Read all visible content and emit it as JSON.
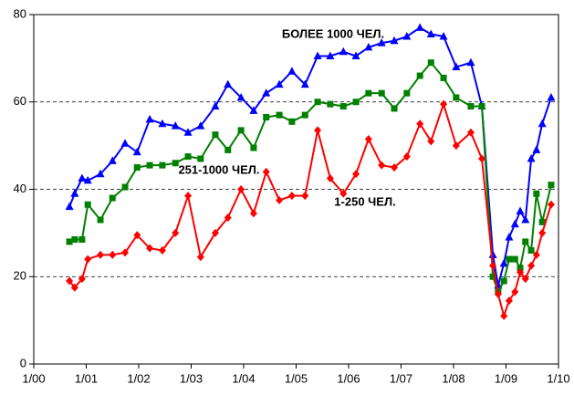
{
  "chart_data": {
    "type": "line",
    "x": [
      2000.68,
      2000.78,
      2000.92,
      2001.03,
      2001.27,
      2001.5,
      2001.74,
      2001.97,
      2002.21,
      2002.45,
      2002.7,
      2002.94,
      2003.18,
      2003.46,
      2003.7,
      2003.95,
      2004.19,
      2004.43,
      2004.68,
      2004.92,
      2005.17,
      2005.41,
      2005.65,
      2005.9,
      2006.14,
      2006.38,
      2006.63,
      2006.87,
      2007.11,
      2007.36,
      2007.57,
      2007.81,
      2008.05,
      2008.33,
      2008.54,
      2008.75,
      2008.85,
      2008.96,
      2009.06,
      2009.17,
      2009.27,
      2009.37,
      2009.48,
      2009.58,
      2009.69,
      2009.86
    ],
    "series": [
      {
        "name": "БОЛЕЕ 1000 ЧЕЛ.",
        "color": "#0000ff",
        "marker": "triangle",
        "values": [
          36,
          39,
          42.5,
          42,
          43.5,
          46.5,
          50.5,
          48.5,
          56,
          55,
          54.5,
          53,
          54.5,
          59,
          64,
          61,
          58,
          62,
          64,
          67,
          64,
          70.5,
          70.5,
          71.5,
          70.5,
          72.5,
          73.5,
          74,
          75,
          77,
          75.5,
          75,
          68,
          69,
          59,
          25,
          18,
          23,
          29,
          32,
          35,
          33,
          47,
          49,
          55,
          61
        ]
      },
      {
        "name": "251-1000 ЧЕЛ.",
        "color": "#008000",
        "marker": "square",
        "values": [
          28,
          28.5,
          28.5,
          36.5,
          33,
          38,
          40.5,
          45,
          45.5,
          45.5,
          46,
          47.5,
          47,
          52.5,
          49,
          53.5,
          49.5,
          56.5,
          57,
          55.5,
          57,
          60,
          59.5,
          59,
          60,
          62,
          62,
          58.5,
          62,
          66,
          69,
          65.5,
          61,
          59,
          59,
          20,
          16.5,
          19,
          24,
          24,
          22,
          28,
          26,
          39,
          32.5,
          41
        ]
      },
      {
        "name": "1-250 ЧЕЛ.",
        "color": "#ff0000",
        "marker": "diamond",
        "values": [
          19,
          17.5,
          19.5,
          24,
          25,
          25,
          25.5,
          29.5,
          26.5,
          26,
          30,
          38.5,
          24.5,
          30,
          33.5,
          40,
          34.5,
          44,
          37.5,
          38.5,
          38.5,
          53.5,
          42.5,
          39,
          43.5,
          51.5,
          45.5,
          45,
          47.5,
          55,
          51,
          59.5,
          50,
          53,
          47,
          22.5,
          16,
          11,
          14.5,
          16.5,
          21,
          19.5,
          22.5,
          25,
          30,
          36.5
        ]
      }
    ],
    "xlim": [
      2000,
      2010
    ],
    "xticks": [
      {
        "value": 2000,
        "label": "1/00"
      },
      {
        "value": 2001,
        "label": "1/01"
      },
      {
        "value": 2002,
        "label": "1/02"
      },
      {
        "value": 2003,
        "label": "1/03"
      },
      {
        "value": 2004,
        "label": "1/04"
      },
      {
        "value": 2005,
        "label": "1/05"
      },
      {
        "value": 2006,
        "label": "1/06"
      },
      {
        "value": 2007,
        "label": "1/07"
      },
      {
        "value": 2008,
        "label": "1/08"
      },
      {
        "value": 2009,
        "label": "1/09"
      },
      {
        "value": 2010,
        "label": "1/10"
      }
    ],
    "ylim": [
      0,
      80
    ],
    "yticks": [
      0,
      20,
      40,
      60,
      80
    ],
    "grid": true
  }
}
